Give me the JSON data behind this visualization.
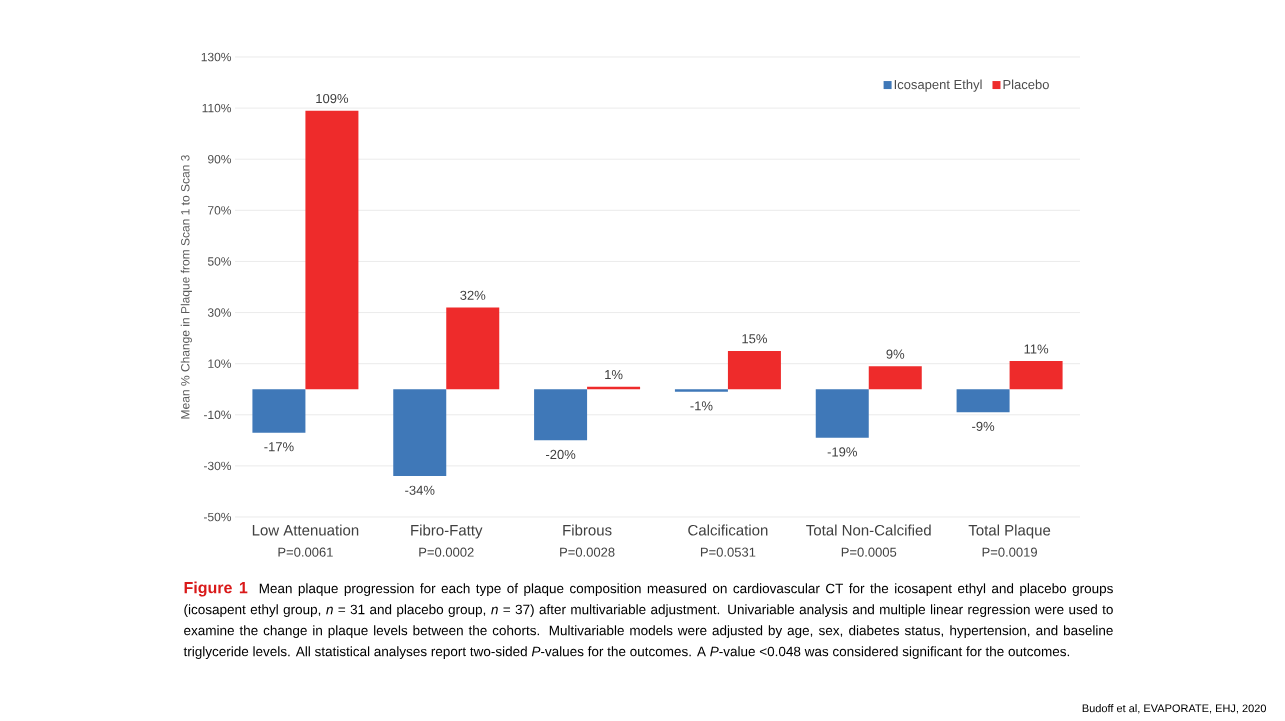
{
  "chart_data": {
    "type": "bar",
    "ylabel": "Mean % Change in Plaque from Scan 1 to Scan 3",
    "categories": [
      "Low Attenuation",
      "Fibro-Fatty",
      "Fibrous",
      "Calcification",
      "Total Non-Calcified",
      "Total Plaque"
    ],
    "series": [
      {
        "name": "Icosapent Ethyl",
        "color": "#3f78b8",
        "values": [
          -17,
          -34,
          -20,
          -1,
          -19,
          -9
        ],
        "value_labels": [
          "-17%",
          "-34%",
          "-20%",
          "-1%",
          "-19%",
          "-9%"
        ]
      },
      {
        "name": "Placebo",
        "color": "#ee2b2b",
        "values": [
          109,
          32,
          1,
          15,
          9,
          11
        ],
        "value_labels": [
          "109%",
          "32%",
          "1%",
          "15%",
          "9%",
          "11%"
        ]
      }
    ],
    "ylim": [
      -50,
      130
    ],
    "yticks": [
      {
        "value": -50,
        "label": "-50%"
      },
      {
        "value": -30,
        "label": "-30%"
      },
      {
        "value": -10,
        "label": "-10%"
      },
      {
        "value": 10,
        "label": "10%"
      },
      {
        "value": 30,
        "label": "30%"
      },
      {
        "value": 50,
        "label": "50%"
      },
      {
        "value": 70,
        "label": "70%"
      },
      {
        "value": 90,
        "label": "90%"
      },
      {
        "value": 110,
        "label": "110%"
      },
      {
        "value": 130,
        "label": "130%"
      }
    ],
    "grid": "y",
    "legend": "top right",
    "annotations": [
      "P=0.0061",
      "P=0.0002",
      "P=0.0028",
      "P=0.0531",
      "P=0.0005",
      "P=0.0019",
      "Figure 1",
      "Mean plaque progression for each type of plaque composition measured on cardiovascular CT for the icosapent ethyl and placebo groups (icosapent ethyl group, *n* = 31 and placebo group, *n* = 37) after multivariable adjustment. Univariable analysis and multiple linear regression were used to examine the change in plaque levels between the cohorts. Multivariable models were adjusted by age, sex, diabetes status, hypertension, and baseline triglyceride levels. All statistical analyses report two-sided *P*-values for the outcomes. A *P*-value <0.048 was considered significant for the outcomes.",
      "Budoff et al, EVAPORATE, EHJ, 2020"
    ]
  }
}
